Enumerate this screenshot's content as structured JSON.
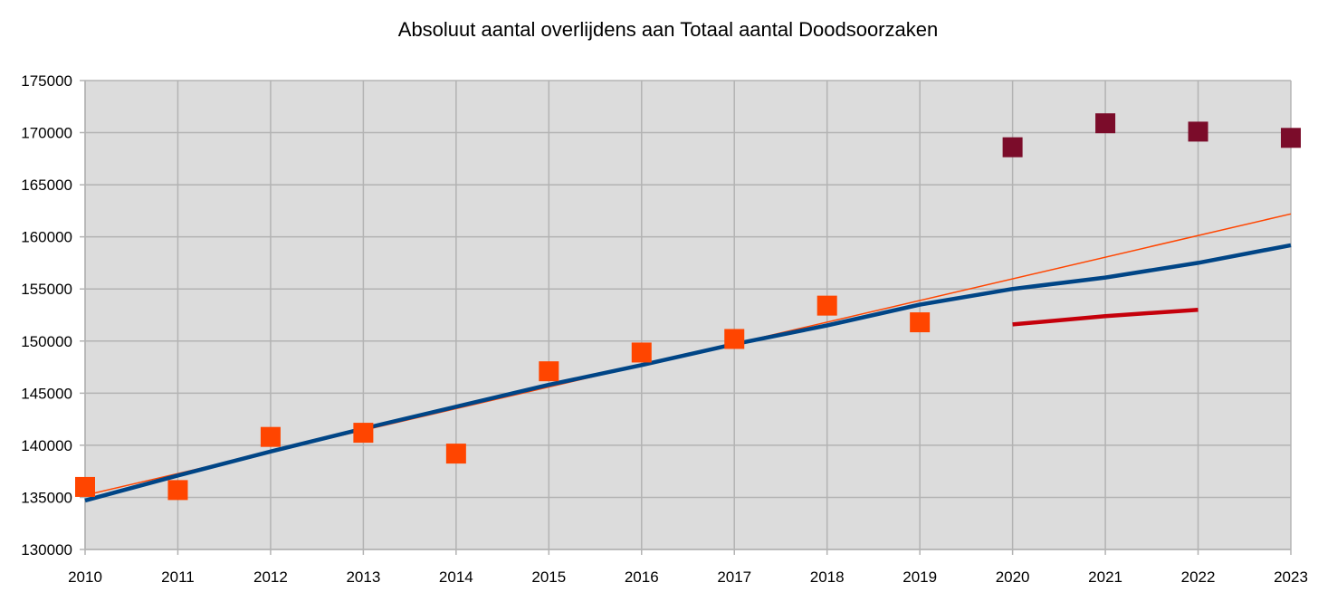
{
  "chart_data": {
    "type": "scatter",
    "title": "Absoluut aantal overlijdens aan Totaal aantal Doodsoorzaken",
    "xlabel": "",
    "ylabel": "",
    "xlim": [
      2010,
      2023
    ],
    "ylim": [
      130000,
      175000
    ],
    "x_ticks": [
      "2010",
      "2011",
      "2012",
      "2013",
      "2014",
      "2015",
      "2016",
      "2017",
      "2018",
      "2019",
      "2020",
      "2021",
      "2022",
      "2023"
    ],
    "y_ticks": [
      "130000",
      "135000",
      "140000",
      "145000",
      "150000",
      "155000",
      "160000",
      "165000",
      "170000",
      "175000"
    ],
    "grid": true,
    "legend": "none",
    "series": [
      {
        "kind": "scatter",
        "color": "#ff4500",
        "points": [
          [
            2010,
            136000
          ],
          [
            2011,
            135700
          ],
          [
            2012,
            140800
          ],
          [
            2013,
            141200
          ],
          [
            2014,
            139200
          ],
          [
            2015,
            147100
          ],
          [
            2016,
            148900
          ],
          [
            2017,
            150200
          ],
          [
            2018,
            153400
          ],
          [
            2019,
            151800
          ]
        ]
      },
      {
        "kind": "scatter",
        "color": "#7b0c2a",
        "points": [
          [
            2020,
            168600
          ],
          [
            2021,
            170900
          ],
          [
            2022,
            170100
          ],
          [
            2023,
            169500
          ]
        ]
      },
      {
        "kind": "line",
        "color": "#ff4500",
        "width": 1.5,
        "points": [
          [
            2010,
            135200
          ],
          [
            2023,
            162200
          ]
        ]
      },
      {
        "kind": "line",
        "color": "#004586",
        "width": 4.5,
        "points": [
          [
            2010,
            134700
          ],
          [
            2011,
            137100
          ],
          [
            2012,
            139400
          ],
          [
            2013,
            141600
          ],
          [
            2014,
            143700
          ],
          [
            2015,
            145800
          ],
          [
            2016,
            147700
          ],
          [
            2017,
            149700
          ],
          [
            2018,
            151500
          ],
          [
            2019,
            153500
          ],
          [
            2020,
            155000
          ],
          [
            2021,
            156100
          ],
          [
            2022,
            157500
          ],
          [
            2023,
            159200
          ]
        ]
      },
      {
        "kind": "line",
        "color": "#c5000b",
        "width": 4.5,
        "points": [
          [
            2020,
            151600
          ],
          [
            2021,
            152400
          ],
          [
            2022,
            153000
          ]
        ]
      }
    ]
  }
}
